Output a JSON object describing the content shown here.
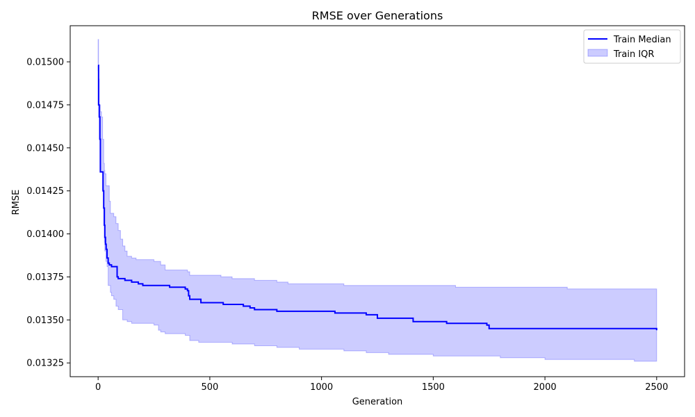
{
  "chart_data": {
    "type": "line",
    "title": "RMSE over Generations",
    "xlabel": "Generation",
    "ylabel": "RMSE",
    "xlim": [
      -125,
      2625
    ],
    "ylim": [
      0.01317,
      0.01521
    ],
    "x_ticks": [
      0,
      500,
      1000,
      1500,
      2000,
      2500
    ],
    "x_tick_labels": [
      "0",
      "500",
      "1000",
      "1500",
      "2000",
      "2500"
    ],
    "y_ticks": [
      0.01325,
      0.0135,
      0.01375,
      0.014,
      0.01425,
      0.0145,
      0.01475,
      0.015
    ],
    "y_tick_labels": [
      "0.01325",
      "0.01350",
      "0.01375",
      "0.01400",
      "0.01425",
      "0.01450",
      "0.01475",
      "0.01500"
    ],
    "grid": false,
    "legend_position": "upper-right",
    "series": [
      {
        "name": "Train Median",
        "kind": "line",
        "color": "#0000ff",
        "x": [
          0,
          2,
          5,
          8,
          10,
          18,
          22,
          25,
          28,
          30,
          33,
          36,
          40,
          45,
          50,
          55,
          60,
          85,
          90,
          120,
          130,
          150,
          170,
          180,
          200,
          250,
          300,
          320,
          350,
          390,
          400,
          405,
          410,
          420,
          460,
          500,
          560,
          620,
          650,
          680,
          700,
          790,
          800,
          810,
          900,
          1000,
          1050,
          1060,
          1100,
          1200,
          1250,
          1300,
          1400,
          1410,
          1500,
          1560,
          1600,
          1700,
          1740,
          1750,
          1850,
          2000,
          2280,
          2500
        ],
        "y": [
          0.01498,
          0.01475,
          0.01468,
          0.01455,
          0.01436,
          0.01436,
          0.01425,
          0.01415,
          0.01405,
          0.01398,
          0.01394,
          0.01391,
          0.01386,
          0.01383,
          0.01382,
          0.01382,
          0.01381,
          0.01375,
          0.01374,
          0.01373,
          0.01373,
          0.01372,
          0.01372,
          0.01371,
          0.0137,
          0.0137,
          0.0137,
          0.01369,
          0.01369,
          0.01368,
          0.01367,
          0.01364,
          0.01362,
          0.01362,
          0.0136,
          0.0136,
          0.01359,
          0.01359,
          0.01358,
          0.01357,
          0.01356,
          0.01356,
          0.01355,
          0.01355,
          0.01355,
          0.01355,
          0.01355,
          0.01354,
          0.01354,
          0.01353,
          0.01351,
          0.01351,
          0.01351,
          0.01349,
          0.01349,
          0.01348,
          0.01348,
          0.01348,
          0.01347,
          0.01345,
          0.01345,
          0.01345,
          0.01345,
          0.01344
        ]
      },
      {
        "name": "Train IQR",
        "kind": "band",
        "color": "#0000ff",
        "fill": "#ccccff",
        "x": [
          0,
          2,
          5,
          10,
          15,
          20,
          25,
          28,
          30,
          35,
          40,
          45,
          50,
          55,
          60,
          70,
          80,
          90,
          100,
          110,
          120,
          130,
          150,
          170,
          200,
          250,
          270,
          280,
          300,
          350,
          390,
          400,
          410,
          420,
          450,
          500,
          550,
          600,
          650,
          700,
          750,
          800,
          850,
          900,
          1000,
          1100,
          1200,
          1300,
          1400,
          1500,
          1600,
          1700,
          1800,
          1900,
          2000,
          2100,
          2200,
          2300,
          2400,
          2500
        ],
        "lower": [
          0.01495,
          0.01475,
          0.01455,
          0.01436,
          0.01436,
          0.01425,
          0.01405,
          0.01395,
          0.0139,
          0.01384,
          0.01381,
          0.0137,
          0.0137,
          0.01366,
          0.01364,
          0.01362,
          0.01358,
          0.01356,
          0.01356,
          0.0135,
          0.0135,
          0.01349,
          0.01348,
          0.01348,
          0.01348,
          0.01347,
          0.01344,
          0.01343,
          0.01342,
          0.01342,
          0.01341,
          0.01341,
          0.01338,
          0.01338,
          0.01337,
          0.01337,
          0.01337,
          0.01336,
          0.01336,
          0.01335,
          0.01335,
          0.01334,
          0.01334,
          0.01333,
          0.01333,
          0.01332,
          0.01331,
          0.0133,
          0.0133,
          0.01329,
          0.01329,
          0.01329,
          0.01328,
          0.01328,
          0.01327,
          0.01327,
          0.01327,
          0.01327,
          0.01326,
          0.01326
        ],
        "upper": [
          0.01513,
          0.0149,
          0.01475,
          0.01471,
          0.01468,
          0.01455,
          0.01441,
          0.01437,
          0.01435,
          0.01428,
          0.01428,
          0.01428,
          0.01419,
          0.01412,
          0.01412,
          0.0141,
          0.01406,
          0.01402,
          0.01397,
          0.01393,
          0.0139,
          0.01387,
          0.01386,
          0.01385,
          0.01385,
          0.01384,
          0.01384,
          0.01382,
          0.01379,
          0.01379,
          0.01379,
          0.01378,
          0.01376,
          0.01376,
          0.01376,
          0.01376,
          0.01375,
          0.01374,
          0.01374,
          0.01373,
          0.01373,
          0.01372,
          0.01371,
          0.01371,
          0.01371,
          0.0137,
          0.0137,
          0.0137,
          0.0137,
          0.0137,
          0.01369,
          0.01369,
          0.01369,
          0.01369,
          0.01369,
          0.01368,
          0.01368,
          0.01368,
          0.01368,
          0.01368
        ]
      }
    ]
  }
}
